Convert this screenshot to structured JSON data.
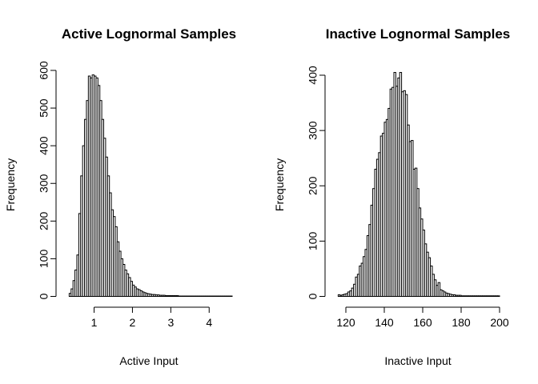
{
  "chart_data": [
    {
      "type": "bar",
      "title": "Active Lognormal Samples",
      "xlabel": "Active Input",
      "ylabel": "Frequency",
      "xlim": [
        0.3,
        4.6
      ],
      "ylim": [
        0,
        600
      ],
      "xticks": [
        1,
        2,
        3,
        4
      ],
      "xtick_labels": [
        "1",
        "2",
        "3",
        "4"
      ],
      "yticks": [
        0,
        100,
        200,
        300,
        400,
        500,
        600
      ],
      "ytick_labels": [
        "0",
        "100",
        "200",
        "300",
        "400",
        "500",
        "600"
      ],
      "bin_start": 0.35,
      "bin_width": 0.05,
      "values": [
        8,
        20,
        42,
        70,
        110,
        220,
        320,
        400,
        470,
        520,
        585,
        580,
        588,
        585,
        580,
        560,
        520,
        470,
        420,
        370,
        320,
        275,
        230,
        212,
        185,
        145,
        120,
        100,
        85,
        70,
        60,
        50,
        40,
        30,
        25,
        20,
        18,
        15,
        12,
        10,
        8,
        7,
        6,
        5,
        5,
        4,
        4,
        3,
        3,
        3,
        2,
        2,
        2,
        2,
        2,
        2,
        2,
        1,
        1,
        1,
        1,
        1,
        1,
        1,
        1,
        1,
        1,
        1,
        1,
        1,
        1,
        1,
        1,
        1,
        1,
        1,
        1,
        1,
        1,
        1,
        1,
        1,
        1,
        1,
        1
      ]
    },
    {
      "type": "bar",
      "title": "Inactive Lognormal Samples",
      "xlabel": "Inactive Input",
      "ylabel": "Frequency",
      "xlim": [
        115,
        200
      ],
      "ylim": [
        0,
        400
      ],
      "xticks": [
        120,
        140,
        160,
        180,
        200
      ],
      "xtick_labels": [
        "120",
        "140",
        "160",
        "180",
        "200"
      ],
      "yticks": [
        0,
        100,
        200,
        300,
        400
      ],
      "ytick_labels": [
        "0",
        "100",
        "200",
        "300",
        "400"
      ],
      "bin_start": 116,
      "bin_width": 1,
      "values": [
        3,
        2,
        3,
        4,
        5,
        8,
        10,
        15,
        22,
        35,
        40,
        55,
        60,
        72,
        85,
        110,
        130,
        165,
        195,
        230,
        248,
        260,
        290,
        295,
        315,
        320,
        340,
        375,
        378,
        405,
        380,
        395,
        405,
        370,
        372,
        365,
        310,
        280,
        282,
        230,
        232,
        195,
        160,
        140,
        120,
        95,
        80,
        70,
        55,
        40,
        30,
        20,
        25,
        12,
        10,
        8,
        6,
        5,
        4,
        3,
        3,
        2,
        2,
        2,
        1,
        1,
        1,
        1,
        1,
        1,
        1,
        1,
        1,
        1,
        1,
        1,
        1,
        1,
        1,
        1,
        1,
        1,
        1,
        1
      ]
    }
  ]
}
